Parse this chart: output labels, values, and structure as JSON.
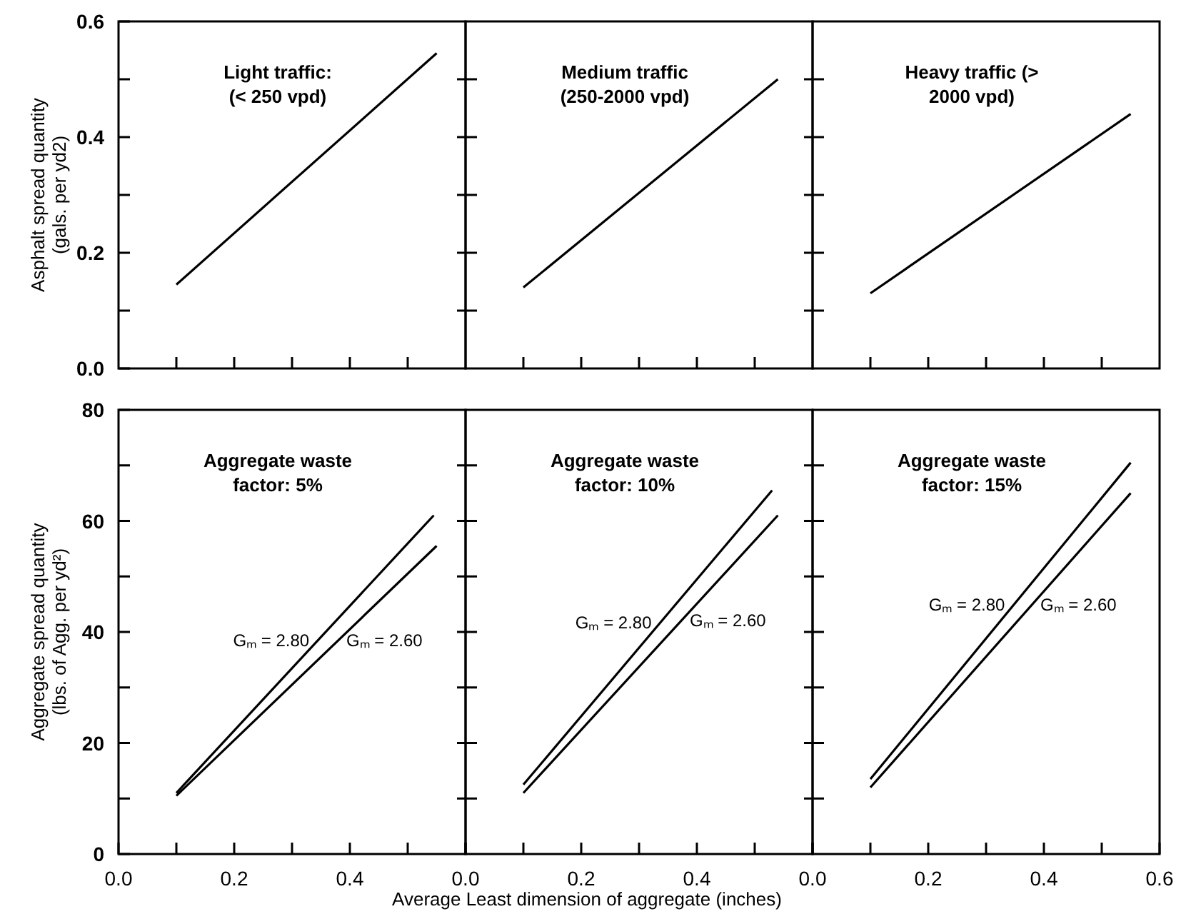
{
  "chart_data": [
    {
      "type": "line",
      "title": "Light traffic: (< 250 vpd)",
      "ylabel": "Asphalt spread quantity (gals. per yd2)",
      "xlim": [
        0,
        0.6
      ],
      "ylim": [
        0,
        0.6
      ],
      "xticks": [
        {
          "value": 0.1,
          "label": null
        },
        {
          "value": 0.2,
          "label": null
        },
        {
          "value": 0.3,
          "label": null
        },
        {
          "value": 0.4,
          "label": null
        },
        {
          "value": 0.5,
          "label": null
        }
      ],
      "yticks": [
        {
          "value": 0,
          "label": "0.0"
        },
        {
          "value": 0.1,
          "label": null
        },
        0.2,
        {
          "value": 0.3,
          "label": null
        },
        0.4,
        {
          "value": 0.5,
          "label": null
        },
        0.6
      ],
      "tick_labels": "y",
      "series": [
        {
          "color": "#000000",
          "x": [
            0.1,
            0.55
          ],
          "values": [
            0.145,
            0.545
          ]
        }
      ]
    },
    {
      "type": "line",
      "title": "Medium traffic (250-2000 vpd)",
      "xlim": [
        0,
        0.6
      ],
      "ylim": [
        0,
        0.6
      ],
      "xticks": [
        {
          "value": 0.1,
          "label": null
        },
        {
          "value": 0.2,
          "label": null
        },
        {
          "value": 0.3,
          "label": null
        },
        {
          "value": 0.4,
          "label": null
        },
        {
          "value": 0.5,
          "label": null
        }
      ],
      "yticks": [
        {
          "value": 0.1,
          "label": null
        },
        {
          "value": 0.2,
          "label": null
        },
        {
          "value": 0.3,
          "label": null
        },
        {
          "value": 0.4,
          "label": null
        },
        {
          "value": 0.5,
          "label": null
        }
      ],
      "tick_labels": false,
      "series": [
        {
          "color": "#000000",
          "x": [
            0.1,
            0.54
          ],
          "values": [
            0.14,
            0.5
          ]
        }
      ]
    },
    {
      "type": "line",
      "title": "Heavy traffic (> 2000 vpd)",
      "xlim": [
        0,
        0.6
      ],
      "ylim": [
        0,
        0.6
      ],
      "xticks": [
        {
          "value": 0.1,
          "label": null
        },
        {
          "value": 0.2,
          "label": null
        },
        {
          "value": 0.3,
          "label": null
        },
        {
          "value": 0.4,
          "label": null
        },
        {
          "value": 0.5,
          "label": null
        }
      ],
      "yticks": [
        {
          "value": 0.1,
          "label": null
        },
        {
          "value": 0.2,
          "label": null
        },
        {
          "value": 0.3,
          "label": null
        },
        {
          "value": 0.4,
          "label": null
        },
        {
          "value": 0.5,
          "label": null
        }
      ],
      "tick_labels": false,
      "series": [
        {
          "color": "#000000",
          "x": [
            0.1,
            0.55
          ],
          "values": [
            0.13,
            0.44
          ]
        }
      ]
    },
    {
      "type": "line",
      "title": "Aggregate waste factor: 5%",
      "ylabel": "Aggregate spread quantity (lbs. of Agg. per yd²)",
      "xlim": [
        0,
        0.6
      ],
      "ylim": [
        0,
        80
      ],
      "xticks": [
        {
          "value": 0,
          "label": "0.0"
        },
        {
          "value": 0.1,
          "label": null
        },
        0.2,
        {
          "value": 0.3,
          "label": null
        },
        0.4,
        {
          "value": 0.5,
          "label": null
        },
        {
          "value": 0.6,
          "label": null
        }
      ],
      "yticks": [
        0,
        {
          "value": 10,
          "label": null
        },
        20,
        {
          "value": 30,
          "label": null
        },
        40,
        {
          "value": 50,
          "label": null
        },
        60,
        {
          "value": 70,
          "label": null
        },
        80
      ],
      "series": [
        {
          "name": "Gₘ = 2.80",
          "color": "#000000",
          "x": [
            0.1,
            0.545
          ],
          "values": [
            11,
            61
          ]
        },
        {
          "name": "Gₘ = 2.60",
          "color": "#000000",
          "x": [
            0.1,
            0.55
          ],
          "values": [
            10.5,
            55.5
          ]
        }
      ]
    },
    {
      "type": "line",
      "title": "Aggregate waste factor: 10%",
      "xlabel": "Average Least dimension of aggregate (inches)",
      "xlim": [
        0,
        0.6
      ],
      "ylim": [
        0,
        80
      ],
      "xticks": [
        {
          "value": 0,
          "label": "0.0"
        },
        {
          "value": 0.1,
          "label": null
        },
        0.2,
        {
          "value": 0.3,
          "label": null
        },
        0.4,
        {
          "value": 0.5,
          "label": null
        },
        {
          "value": 0.6,
          "label": null
        }
      ],
      "yticks": [
        {
          "value": 10,
          "label": null
        },
        {
          "value": 20,
          "label": null
        },
        {
          "value": 30,
          "label": null
        },
        {
          "value": 40,
          "label": null
        },
        {
          "value": 50,
          "label": null
        },
        {
          "value": 60,
          "label": null
        },
        {
          "value": 70,
          "label": null
        }
      ],
      "tick_labels": "x",
      "series": [
        {
          "name": "Gₘ = 2.80",
          "color": "#000000",
          "x": [
            0.1,
            0.53
          ],
          "values": [
            12.5,
            65.5
          ]
        },
        {
          "name": "Gₘ = 2.60",
          "color": "#000000",
          "x": [
            0.1,
            0.54
          ],
          "values": [
            11,
            61
          ]
        }
      ]
    },
    {
      "type": "line",
      "title": "Aggregate waste factor: 15%",
      "xlim": [
        0,
        0.6
      ],
      "ylim": [
        0,
        80
      ],
      "xticks": [
        {
          "value": 0,
          "label": "0.0"
        },
        {
          "value": 0.1,
          "label": null
        },
        0.2,
        {
          "value": 0.3,
          "label": null
        },
        0.4,
        {
          "value": 0.5,
          "label": null
        },
        0.6
      ],
      "yticks": [
        {
          "value": 10,
          "label": null
        },
        {
          "value": 20,
          "label": null
        },
        {
          "value": 30,
          "label": null
        },
        {
          "value": 40,
          "label": null
        },
        {
          "value": 50,
          "label": null
        },
        {
          "value": 60,
          "label": null
        },
        {
          "value": 70,
          "label": null
        }
      ],
      "tick_labels": "x",
      "series": [
        {
          "name": "Gₘ = 2.80",
          "color": "#000000",
          "x": [
            0.1,
            0.55
          ],
          "values": [
            13.5,
            70.5
          ]
        },
        {
          "name": "Gₘ = 2.60",
          "color": "#000000",
          "x": [
            0.1,
            0.55
          ],
          "values": [
            12,
            65
          ]
        }
      ]
    }
  ]
}
